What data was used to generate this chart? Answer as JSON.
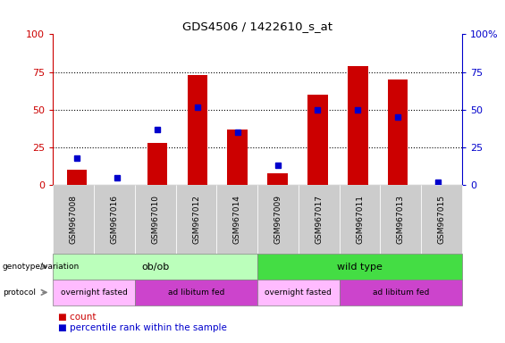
{
  "title": "GDS4506 / 1422610_s_at",
  "samples": [
    "GSM967008",
    "GSM967016",
    "GSM967010",
    "GSM967012",
    "GSM967014",
    "GSM967009",
    "GSM967017",
    "GSM967011",
    "GSM967013",
    "GSM967015"
  ],
  "counts": [
    10,
    0,
    28,
    73,
    37,
    8,
    60,
    79,
    70,
    0
  ],
  "percentiles": [
    18,
    5,
    37,
    52,
    35,
    13,
    50,
    50,
    45,
    2
  ],
  "ylim": [
    0,
    100
  ],
  "left_yticks": [
    0,
    25,
    50,
    75,
    100
  ],
  "right_ytick_labels": [
    "0",
    "25",
    "50",
    "75",
    "100%"
  ],
  "bar_color": "#cc0000",
  "percentile_color": "#0000cc",
  "bg_color": "#ffffff",
  "xticklabel_bg": "#cccccc",
  "genotype_groups": [
    {
      "label": "ob/ob",
      "start": 0,
      "end": 5,
      "color": "#bbffbb"
    },
    {
      "label": "wild type",
      "start": 5,
      "end": 10,
      "color": "#44dd44"
    }
  ],
  "protocol_groups": [
    {
      "label": "overnight fasted",
      "start": 0,
      "end": 2,
      "color": "#ffbbff"
    },
    {
      "label": "ad libitum fed",
      "start": 2,
      "end": 5,
      "color": "#cc44cc"
    },
    {
      "label": "overnight fasted",
      "start": 5,
      "end": 7,
      "color": "#ffbbff"
    },
    {
      "label": "ad libitum fed",
      "start": 7,
      "end": 10,
      "color": "#cc44cc"
    }
  ]
}
